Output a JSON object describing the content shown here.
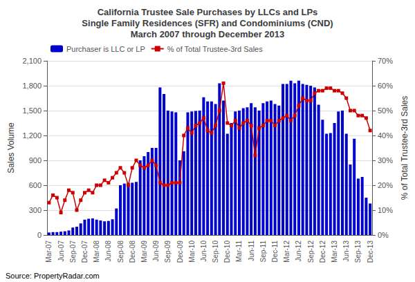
{
  "chart_data": {
    "type": "bar",
    "title": "California Trustee Sale Purchases by LLCs and LPs\nSingle Family Residences (SFR) and Condominiums (CND)\nMarch 2007 through December 2013",
    "ylabel": "Sales Volume",
    "y2label": "% of Total Trustee-3rd Sales",
    "annotations": [
      "Source: PropertyRadar.com"
    ],
    "categories": [
      "Mar-07",
      null,
      null,
      "Jun-07",
      null,
      null,
      "Sep-07",
      null,
      null,
      "Dec-07",
      null,
      null,
      "Mar-08",
      null,
      null,
      "Jun-08",
      null,
      null,
      "Sep-08",
      null,
      null,
      "Dec-08",
      null,
      null,
      "Mar-09",
      null,
      null,
      "Jun-09",
      null,
      null,
      "Sep-09",
      null,
      null,
      "Dec-09",
      null,
      null,
      "Mar-10",
      null,
      null,
      "Jun-10",
      null,
      null,
      "Sep-10",
      null,
      null,
      "Dec-10",
      null,
      null,
      "Mar-11",
      null,
      null,
      "Jun-11",
      null,
      null,
      "Sep-11",
      null,
      null,
      "Dec-11",
      null,
      null,
      "Mar-12",
      null,
      null,
      "Jun-12",
      null,
      null,
      "Sep-12",
      null,
      null,
      "Dec-12",
      null,
      null,
      "Mar-13",
      null,
      null,
      "Jun-13",
      null,
      null,
      "Sep-13",
      null,
      null,
      "Dec-13"
    ],
    "series": [
      {
        "name": "Purchaser is LLC or LP",
        "type": "bar",
        "color": "#0000CC",
        "values": [
          30,
          35,
          35,
          40,
          45,
          55,
          90,
          100,
          140,
          185,
          195,
          200,
          185,
          175,
          165,
          170,
          190,
          320,
          600,
          620,
          630,
          630,
          640,
          900,
          950,
          1000,
          1050,
          1050,
          1780,
          1700,
          1500,
          1490,
          1480,
          900,
          1010,
          1480,
          1490,
          1495,
          1500,
          1660,
          1610,
          1610,
          1580,
          1830,
          1620,
          1220,
          1350,
          1490,
          1500,
          1530,
          1540,
          1590,
          1540,
          1500,
          1590,
          1610,
          1620,
          1580,
          1560,
          1820,
          1820,
          1860,
          1830,
          1860,
          1820,
          1810,
          1800,
          1780,
          1570,
          1390,
          1220,
          1230,
          1350,
          1490,
          1500,
          1220,
          850,
          1160,
          680,
          700,
          450,
          380
        ]
      },
      {
        "name": "% of Total Trustee-3rd Sales",
        "type": "line",
        "axis": "y2",
        "color": "#CC0000",
        "marker": "square",
        "line_style": "solid",
        "values": [
          0.13,
          0.16,
          0.15,
          0.09,
          0.14,
          0.18,
          0.17,
          0.1,
          0.14,
          0.17,
          0.18,
          0.17,
          0.2,
          0.2,
          0.22,
          0.21,
          0.23,
          0.25,
          0.27,
          0.25,
          0.2,
          0.27,
          0.3,
          0.28,
          0.27,
          0.28,
          0.3,
          0.28,
          0.21,
          0.2,
          0.2,
          0.21,
          0.21,
          0.21,
          0.4,
          0.43,
          0.41,
          0.44,
          0.45,
          0.47,
          0.42,
          0.41,
          0.44,
          0.5,
          0.61,
          0.45,
          0.44,
          0.46,
          0.43,
          0.45,
          0.46,
          0.44,
          0.32,
          0.43,
          0.44,
          0.46,
          0.46,
          0.44,
          0.46,
          0.47,
          0.48,
          0.46,
          0.48,
          0.52,
          0.55,
          0.54,
          0.54,
          0.57,
          0.58,
          0.58,
          0.59,
          0.59,
          0.58,
          0.58,
          0.57,
          0.55,
          0.5,
          0.5,
          0.48,
          0.48,
          0.47,
          0.42
        ]
      }
    ],
    "ylim": [
      0,
      2100
    ],
    "yticks": [
      0,
      300,
      600,
      900,
      {
        "value": 1200,
        "label": "1,200"
      },
      {
        "value": 1500,
        "label": "1,500"
      },
      {
        "value": 1800,
        "label": "1,800"
      },
      {
        "value": 2100,
        "label": "2,100"
      }
    ],
    "y2lim": [
      0,
      0.7
    ],
    "y2ticks": [
      {
        "value": 0.0,
        "label": "0%"
      },
      {
        "value": 0.1,
        "label": "10%"
      },
      {
        "value": 0.2,
        "label": "20%"
      },
      {
        "value": 0.3,
        "label": "30%"
      },
      {
        "value": 0.4,
        "label": "40%"
      },
      {
        "value": 0.5,
        "label": "50%"
      },
      {
        "value": 0.6,
        "label": "60%"
      },
      {
        "value": 0.7,
        "label": "70%"
      }
    ],
    "grid": true,
    "legend": "upper left"
  }
}
